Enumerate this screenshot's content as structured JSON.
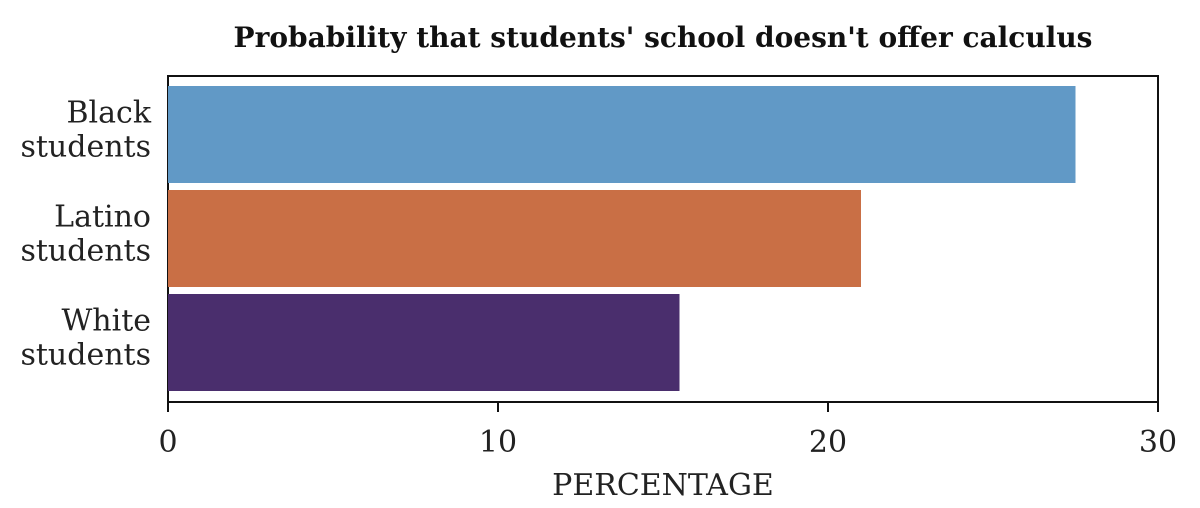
{
  "chart_data": {
    "type": "bar",
    "orientation": "horizontal",
    "title": "Probability that students' school doesn't offer calculus",
    "xlabel": "PERCENTAGE",
    "ylabel": "",
    "xlim": [
      0,
      30
    ],
    "xticks": [
      "0",
      "10",
      "20",
      "30"
    ],
    "grid": false,
    "categories": [
      {
        "line1": "Black",
        "line2": "students"
      },
      {
        "line1": "Latino",
        "line2": "students"
      },
      {
        "line1": "White",
        "line2": "students"
      }
    ],
    "values": [
      27.5,
      21.0,
      15.5
    ],
    "colors": [
      "#6199c6",
      "#c96f45",
      "#4a2e6d"
    ]
  }
}
